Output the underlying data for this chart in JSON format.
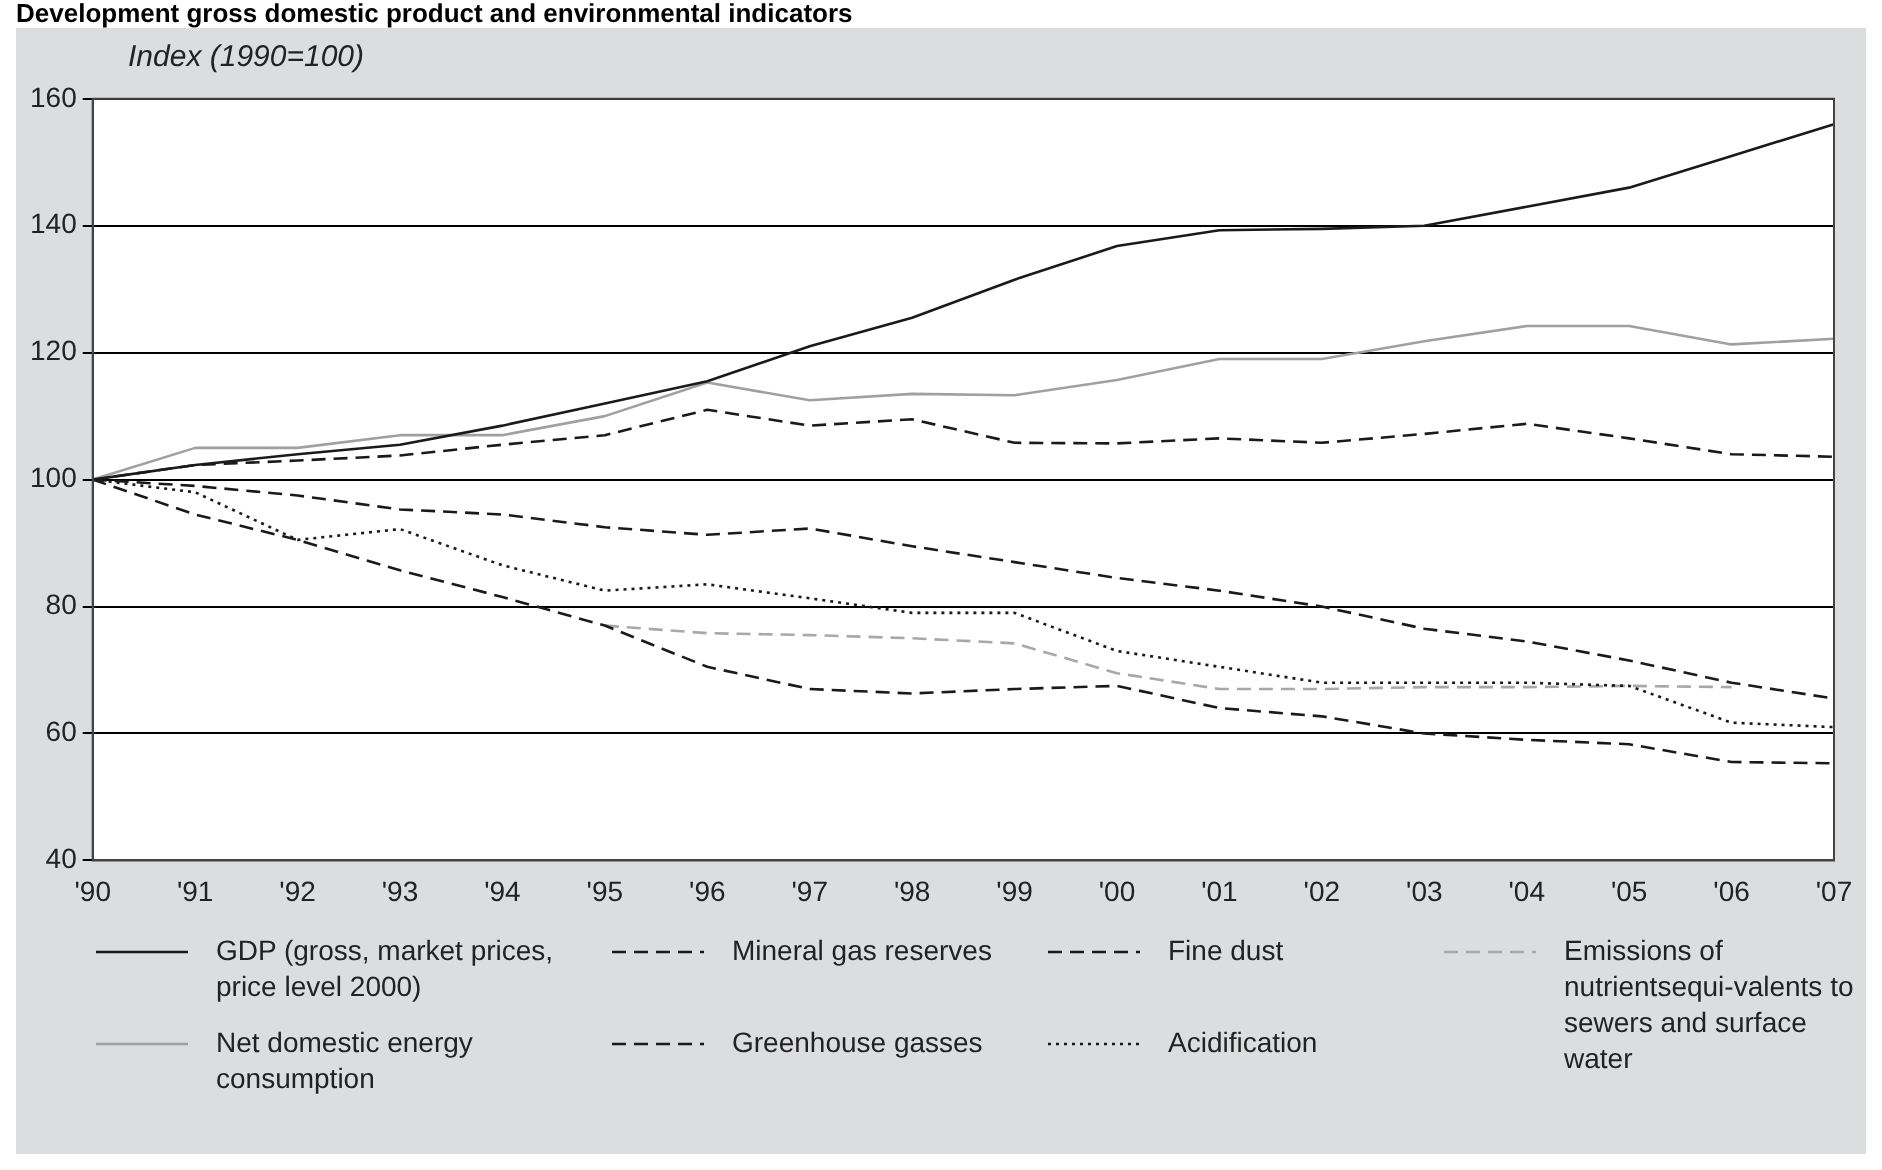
{
  "chart_data": {
    "type": "line",
    "title": "Development gross domestic product and environmental indicators",
    "ylabel": "Index (1990=100)",
    "categories": [
      "'90",
      "'91",
      "'92",
      "'93",
      "'94",
      "'95",
      "'96",
      "'97",
      "'98",
      "'99",
      "'00",
      "'01",
      "'02",
      "'03",
      "'04",
      "'05",
      "'06",
      "'07"
    ],
    "series": [
      {
        "name": "GDP (gross, market prices, price level 2000)",
        "color": "#1a1a1a",
        "line_style": "solid",
        "values": [
          100,
          102.3,
          104,
          105.5,
          108.5,
          112,
          115.5,
          121,
          125.5,
          131.5,
          136.8,
          139.3,
          139.5,
          140,
          143,
          146,
          151,
          156
        ]
      },
      {
        "name": "Net domestic energy consumption",
        "color": "#a0a0a0",
        "line_style": "solid",
        "values": [
          100,
          105,
          105,
          107,
          107,
          110,
          115.3,
          112.5,
          113.5,
          113.3,
          115.7,
          119,
          119,
          121.8,
          124.2,
          124.2,
          121.3,
          122.2
        ]
      },
      {
        "name": "Mineral gas reserves",
        "color": "#1a1a1a",
        "line_style": "dashed",
        "values": [
          100,
          99,
          97.5,
          95.3,
          94.5,
          92.5,
          91.3,
          92.3,
          89.5,
          87,
          84.5,
          82.5,
          80,
          76.5,
          74.5,
          71.5,
          68,
          65.5
        ]
      },
      {
        "name": "Greenhouse gasses",
        "color": "#1a1a1a",
        "line_style": "dashed",
        "values": [
          100,
          102.3,
          103,
          103.8,
          105.5,
          107,
          111,
          108.5,
          109.5,
          105.8,
          105.7,
          106.5,
          105.8,
          107.2,
          108.8,
          106.5,
          104,
          103.6
        ]
      },
      {
        "name": "Fine dust",
        "color": "#1a1a1a",
        "line_style": "dashed",
        "values": [
          100,
          94.5,
          90.5,
          85.7,
          81.5,
          77,
          70.5,
          67,
          66.3,
          67,
          67.5,
          64,
          62.7,
          60,
          59,
          58.3,
          55.5,
          55.3
        ]
      },
      {
        "name": "Acidification",
        "color": "#1a1a1a",
        "line_style": "dotted",
        "values": [
          100,
          98,
          90.5,
          92.2,
          86.5,
          82.5,
          83.5,
          81.3,
          79,
          79,
          73,
          70.5,
          68,
          68,
          68,
          67.5,
          61.7,
          61
        ]
      },
      {
        "name": "Emissions of nutrientsequi-valents to sewers and surface water",
        "color": "#a8a8a8",
        "line_style": "dashed",
        "values": [
          null,
          null,
          null,
          null,
          null,
          77,
          75.8,
          75.5,
          75,
          74.2,
          69.5,
          67,
          67,
          67.3,
          67.3,
          67.5,
          67.3,
          null
        ]
      }
    ],
    "ylim": [
      40,
      160
    ],
    "yticks": [
      40,
      60,
      80,
      100,
      120,
      140,
      160
    ],
    "grid": "y",
    "legend": "bottom",
    "marker": "none"
  }
}
